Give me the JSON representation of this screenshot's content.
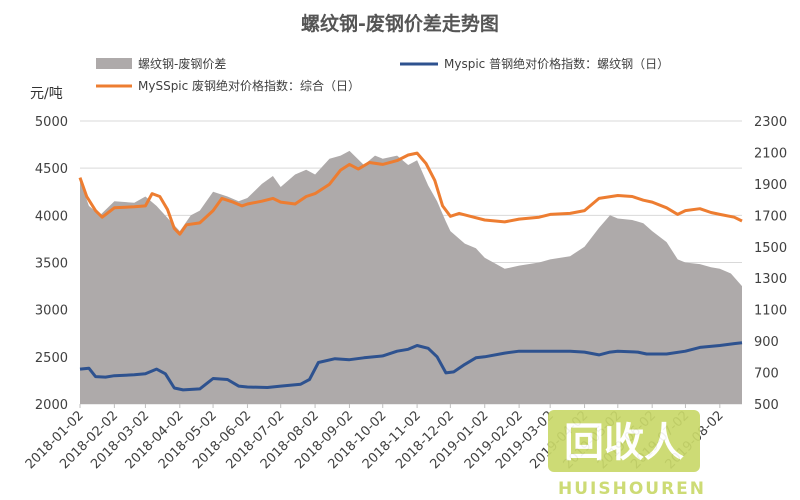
{
  "chart_data": {
    "type": "area",
    "title": "螺纹钢-废钢价差走势图",
    "y_unit_label": "元/吨",
    "x_tick_labels": [
      "2018-01-02",
      "2018-02-02",
      "2018-03-02",
      "2018-04-02",
      "2018-05-02",
      "2018-06-02",
      "2018-07-02",
      "2018-08-02",
      "2018-09-02",
      "2018-10-02",
      "2018-11-02",
      "2018-12-02",
      "2019-01-02",
      "2019-02-02",
      "2019-03-02",
      "2019-04-02",
      "2019-05-02",
      "2019-06-02",
      "2019-07-02",
      "2019-08-02"
    ],
    "x_range": [
      "2018-01-02",
      "2019-08-22"
    ],
    "y_left": {
      "min": 2000,
      "max": 5000,
      "step": 500,
      "ticks": [
        "2000",
        "2500",
        "3000",
        "3500",
        "4000",
        "4500",
        "5000"
      ]
    },
    "y_right": {
      "min": 500,
      "max": 2300,
      "step": 200,
      "ticks": [
        "500",
        "700",
        "900",
        "1100",
        "1300",
        "1500",
        "1700",
        "1900",
        "2100",
        "2300"
      ]
    },
    "grid": true,
    "series": [
      {
        "name": "螺纹钢-废钢价差",
        "kind": "area",
        "axis": "right",
        "color": "#aeaaaa",
        "points": [
          [
            "2018-01-02",
            1920
          ],
          [
            "2018-01-10",
            1760
          ],
          [
            "2018-01-20",
            1700
          ],
          [
            "2018-02-02",
            1790
          ],
          [
            "2018-02-20",
            1780
          ],
          [
            "2018-03-02",
            1820
          ],
          [
            "2018-03-12",
            1760
          ],
          [
            "2018-03-25",
            1660
          ],
          [
            "2018-04-02",
            1600
          ],
          [
            "2018-04-12",
            1700
          ],
          [
            "2018-04-20",
            1730
          ],
          [
            "2018-05-02",
            1850
          ],
          [
            "2018-05-15",
            1820
          ],
          [
            "2018-05-25",
            1790
          ],
          [
            "2018-06-02",
            1810
          ],
          [
            "2018-06-15",
            1900
          ],
          [
            "2018-06-25",
            1950
          ],
          [
            "2018-07-02",
            1880
          ],
          [
            "2018-07-15",
            1960
          ],
          [
            "2018-07-25",
            1990
          ],
          [
            "2018-08-02",
            1960
          ],
          [
            "2018-08-15",
            2060
          ],
          [
            "2018-08-25",
            2080
          ],
          [
            "2018-09-02",
            2110
          ],
          [
            "2018-09-15",
            2020
          ],
          [
            "2018-09-25",
            2080
          ],
          [
            "2018-10-02",
            2060
          ],
          [
            "2018-10-15",
            2080
          ],
          [
            "2018-10-25",
            2020
          ],
          [
            "2018-11-02",
            2050
          ],
          [
            "2018-11-12",
            1890
          ],
          [
            "2018-11-20",
            1790
          ],
          [
            "2018-11-28",
            1660
          ],
          [
            "2018-12-02",
            1600
          ],
          [
            "2018-12-15",
            1520
          ],
          [
            "2018-12-25",
            1490
          ],
          [
            "2019-01-02",
            1430
          ],
          [
            "2019-01-20",
            1360
          ],
          [
            "2019-02-02",
            1380
          ],
          [
            "2019-02-20",
            1400
          ],
          [
            "2019-03-02",
            1420
          ],
          [
            "2019-03-20",
            1440
          ],
          [
            "2019-04-02",
            1500
          ],
          [
            "2019-04-15",
            1620
          ],
          [
            "2019-04-25",
            1700
          ],
          [
            "2019-05-02",
            1680
          ],
          [
            "2019-05-15",
            1670
          ],
          [
            "2019-05-25",
            1650
          ],
          [
            "2019-06-02",
            1600
          ],
          [
            "2019-06-15",
            1530
          ],
          [
            "2019-06-25",
            1420
          ],
          [
            "2019-07-02",
            1400
          ],
          [
            "2019-07-15",
            1390
          ],
          [
            "2019-07-25",
            1370
          ],
          [
            "2019-08-02",
            1360
          ],
          [
            "2019-08-12",
            1330
          ],
          [
            "2019-08-22",
            1250
          ]
        ]
      },
      {
        "name": "Myspic 普钢绝对价格指数：螺纹钢（日）",
        "kind": "line",
        "axis": "left",
        "color": "#2e528f",
        "points": [
          [
            "2018-01-02",
            2370
          ],
          [
            "2018-01-10",
            2380
          ],
          [
            "2018-01-16",
            2290
          ],
          [
            "2018-01-25",
            2285
          ],
          [
            "2018-02-02",
            2300
          ],
          [
            "2018-02-20",
            2310
          ],
          [
            "2018-03-02",
            2320
          ],
          [
            "2018-03-12",
            2370
          ],
          [
            "2018-03-20",
            2320
          ],
          [
            "2018-03-28",
            2170
          ],
          [
            "2018-04-05",
            2150
          ],
          [
            "2018-04-20",
            2160
          ],
          [
            "2018-05-02",
            2270
          ],
          [
            "2018-05-15",
            2260
          ],
          [
            "2018-05-25",
            2190
          ],
          [
            "2018-06-02",
            2180
          ],
          [
            "2018-06-20",
            2175
          ],
          [
            "2018-07-02",
            2190
          ],
          [
            "2018-07-20",
            2210
          ],
          [
            "2018-07-28",
            2260
          ],
          [
            "2018-08-05",
            2440
          ],
          [
            "2018-08-20",
            2480
          ],
          [
            "2018-09-02",
            2470
          ],
          [
            "2018-09-15",
            2490
          ],
          [
            "2018-10-02",
            2510
          ],
          [
            "2018-10-15",
            2560
          ],
          [
            "2018-10-25",
            2580
          ],
          [
            "2018-11-02",
            2620
          ],
          [
            "2018-11-12",
            2590
          ],
          [
            "2018-11-20",
            2500
          ],
          [
            "2018-11-28",
            2330
          ],
          [
            "2018-12-05",
            2340
          ],
          [
            "2018-12-15",
            2420
          ],
          [
            "2018-12-25",
            2490
          ],
          [
            "2019-01-02",
            2500
          ],
          [
            "2019-01-20",
            2540
          ],
          [
            "2019-02-02",
            2560
          ],
          [
            "2019-03-02",
            2560
          ],
          [
            "2019-03-20",
            2560
          ],
          [
            "2019-04-02",
            2550
          ],
          [
            "2019-04-15",
            2520
          ],
          [
            "2019-04-25",
            2550
          ],
          [
            "2019-05-02",
            2560
          ],
          [
            "2019-05-20",
            2550
          ],
          [
            "2019-05-28",
            2530
          ],
          [
            "2019-06-15",
            2530
          ],
          [
            "2019-07-02",
            2560
          ],
          [
            "2019-07-15",
            2600
          ],
          [
            "2019-08-02",
            2620
          ],
          [
            "2019-08-15",
            2640
          ],
          [
            "2019-08-22",
            2650
          ]
        ]
      },
      {
        "name": "MySSpic 废钢绝对价格指数：综合（日）",
        "kind": "line",
        "axis": "left",
        "color": "#ed7d31",
        "points": [
          [
            "2018-01-02",
            4400
          ],
          [
            "2018-01-08",
            4200
          ],
          [
            "2018-01-16",
            4050
          ],
          [
            "2018-01-22",
            3980
          ],
          [
            "2018-02-02",
            4080
          ],
          [
            "2018-02-20",
            4090
          ],
          [
            "2018-03-02",
            4100
          ],
          [
            "2018-03-08",
            4230
          ],
          [
            "2018-03-15",
            4200
          ],
          [
            "2018-03-22",
            4060
          ],
          [
            "2018-03-28",
            3860
          ],
          [
            "2018-04-02",
            3800
          ],
          [
            "2018-04-08",
            3900
          ],
          [
            "2018-04-20",
            3920
          ],
          [
            "2018-05-02",
            4050
          ],
          [
            "2018-05-10",
            4180
          ],
          [
            "2018-05-20",
            4140
          ],
          [
            "2018-05-28",
            4100
          ],
          [
            "2018-06-02",
            4120
          ],
          [
            "2018-06-15",
            4150
          ],
          [
            "2018-06-25",
            4180
          ],
          [
            "2018-07-02",
            4140
          ],
          [
            "2018-07-15",
            4120
          ],
          [
            "2018-07-25",
            4200
          ],
          [
            "2018-08-02",
            4230
          ],
          [
            "2018-08-15",
            4330
          ],
          [
            "2018-08-25",
            4480
          ],
          [
            "2018-09-02",
            4540
          ],
          [
            "2018-09-10",
            4490
          ],
          [
            "2018-09-20",
            4560
          ],
          [
            "2018-10-02",
            4540
          ],
          [
            "2018-10-15",
            4580
          ],
          [
            "2018-10-25",
            4640
          ],
          [
            "2018-11-02",
            4660
          ],
          [
            "2018-11-10",
            4550
          ],
          [
            "2018-11-18",
            4370
          ],
          [
            "2018-11-25",
            4100
          ],
          [
            "2018-12-02",
            3990
          ],
          [
            "2018-12-10",
            4020
          ],
          [
            "2018-12-20",
            3990
          ],
          [
            "2019-01-02",
            3950
          ],
          [
            "2019-01-20",
            3930
          ],
          [
            "2019-02-02",
            3960
          ],
          [
            "2019-02-20",
            3980
          ],
          [
            "2019-03-02",
            4010
          ],
          [
            "2019-03-20",
            4020
          ],
          [
            "2019-04-02",
            4050
          ],
          [
            "2019-04-15",
            4180
          ],
          [
            "2019-05-02",
            4210
          ],
          [
            "2019-05-15",
            4200
          ],
          [
            "2019-05-25",
            4160
          ],
          [
            "2019-06-02",
            4140
          ],
          [
            "2019-06-15",
            4080
          ],
          [
            "2019-06-25",
            4010
          ],
          [
            "2019-07-02",
            4050
          ],
          [
            "2019-07-15",
            4070
          ],
          [
            "2019-07-25",
            4030
          ],
          [
            "2019-08-02",
            4010
          ],
          [
            "2019-08-15",
            3980
          ],
          [
            "2019-08-22",
            3940
          ]
        ]
      }
    ]
  },
  "watermark": {
    "glyph_text": "回收人",
    "subtext": "HUISHOUREN",
    "color": "#c9d86a"
  }
}
